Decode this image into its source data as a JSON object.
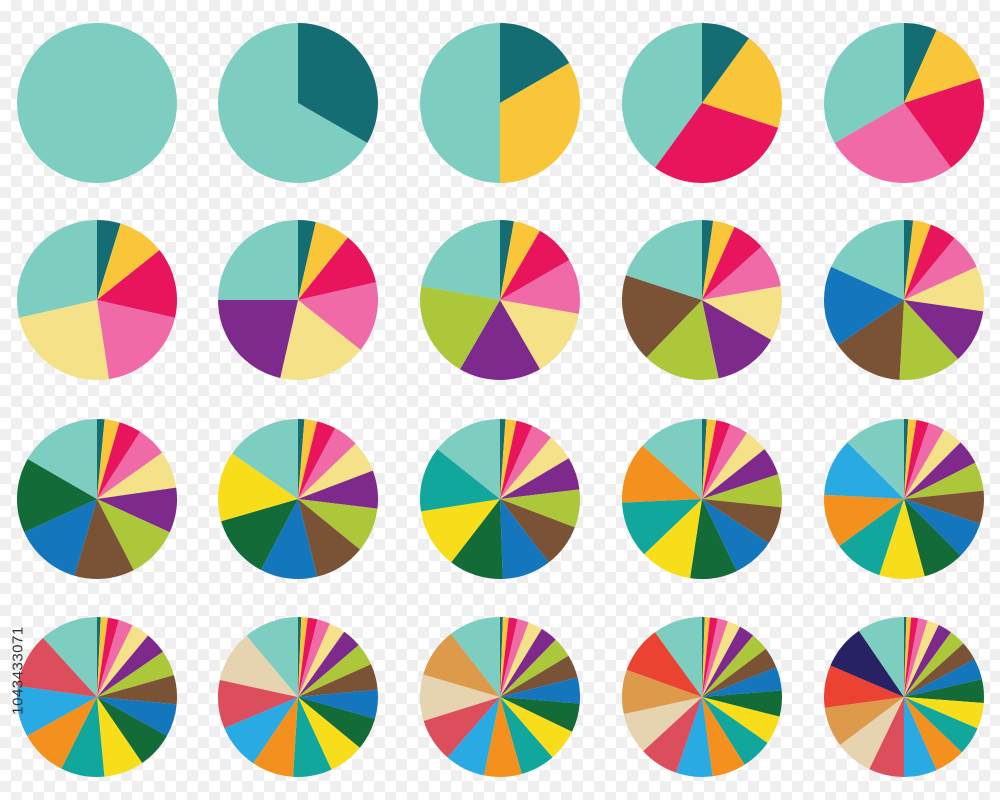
{
  "stock_id": "1043433071",
  "palette": {
    "teal_light": "#7dcdc1",
    "teal_dark": "#136d73",
    "yellow": "#f9c63a",
    "red": "#e8145c",
    "pink": "#f06aa8",
    "cream": "#f4e188",
    "purple": "#7d2a8c",
    "lime": "#adc73a",
    "brown": "#7a5236",
    "blue": "#1476bd",
    "green_dark": "#136b38",
    "yellow_bright": "#f8de1a",
    "teal": "#12a79d",
    "orange": "#f4901e",
    "sky": "#2aaae2",
    "salmon": "#dc4e5c",
    "beige": "#e6d3b0",
    "tan": "#dc9a4a",
    "red_orange": "#ec4231",
    "navy": "#272263"
  },
  "chart_data": [
    {
      "type": "pie",
      "values": [
        1
      ],
      "colors": [
        "#7dcdc1"
      ]
    },
    {
      "type": "pie",
      "values": [
        1,
        2
      ],
      "colors": [
        "#136d73",
        "#7dcdc1"
      ]
    },
    {
      "type": "pie",
      "values": [
        1,
        2,
        3
      ],
      "colors": [
        "#136d73",
        "#f9c63a",
        "#7dcdc1"
      ]
    },
    {
      "type": "pie",
      "values": [
        1,
        2,
        3,
        4
      ],
      "colors": [
        "#136d73",
        "#f9c63a",
        "#e8145c",
        "#7dcdc1"
      ]
    },
    {
      "type": "pie",
      "values": [
        1,
        2,
        3,
        4,
        5
      ],
      "colors": [
        "#136d73",
        "#f9c63a",
        "#e8145c",
        "#f06aa8",
        "#7dcdc1"
      ]
    },
    {
      "type": "pie",
      "values": [
        1,
        2,
        3,
        4,
        5,
        6
      ],
      "colors": [
        "#136d73",
        "#f9c63a",
        "#e8145c",
        "#f06aa8",
        "#f4e188",
        "#7dcdc1"
      ]
    },
    {
      "type": "pie",
      "values": [
        1,
        2,
        3,
        4,
        5,
        6,
        7
      ],
      "colors": [
        "#136d73",
        "#f9c63a",
        "#e8145c",
        "#f06aa8",
        "#f4e188",
        "#7d2a8c",
        "#7dcdc1"
      ]
    },
    {
      "type": "pie",
      "values": [
        1,
        2,
        3,
        4,
        5,
        6,
        7,
        8
      ],
      "colors": [
        "#136d73",
        "#f9c63a",
        "#e8145c",
        "#f06aa8",
        "#f4e188",
        "#7d2a8c",
        "#adc73a",
        "#7dcdc1"
      ]
    },
    {
      "type": "pie",
      "values": [
        1,
        2,
        3,
        4,
        5,
        6,
        7,
        8,
        9
      ],
      "colors": [
        "#136d73",
        "#f9c63a",
        "#e8145c",
        "#f06aa8",
        "#f4e188",
        "#7d2a8c",
        "#adc73a",
        "#7a5236",
        "#7dcdc1"
      ]
    },
    {
      "type": "pie",
      "values": [
        1,
        2,
        3,
        4,
        5,
        6,
        7,
        8,
        9,
        10
      ],
      "colors": [
        "#136d73",
        "#f9c63a",
        "#e8145c",
        "#f06aa8",
        "#f4e188",
        "#7d2a8c",
        "#adc73a",
        "#7a5236",
        "#1476bd",
        "#7dcdc1"
      ]
    },
    {
      "type": "pie",
      "values": [
        1,
        2,
        3,
        4,
        5,
        6,
        7,
        8,
        9,
        10,
        11
      ],
      "colors": [
        "#136d73",
        "#f9c63a",
        "#e8145c",
        "#f06aa8",
        "#f4e188",
        "#7d2a8c",
        "#adc73a",
        "#7a5236",
        "#1476bd",
        "#136b38",
        "#7dcdc1"
      ]
    },
    {
      "type": "pie",
      "values": [
        1,
        2,
        3,
        4,
        5,
        6,
        7,
        8,
        9,
        10,
        11,
        12
      ],
      "colors": [
        "#136d73",
        "#f9c63a",
        "#e8145c",
        "#f06aa8",
        "#f4e188",
        "#7d2a8c",
        "#adc73a",
        "#7a5236",
        "#1476bd",
        "#136b38",
        "#f8de1a",
        "#7dcdc1"
      ]
    },
    {
      "type": "pie",
      "values": [
        1,
        2,
        3,
        4,
        5,
        6,
        7,
        8,
        9,
        10,
        11,
        12,
        13
      ],
      "colors": [
        "#136d73",
        "#f9c63a",
        "#e8145c",
        "#f06aa8",
        "#f4e188",
        "#7d2a8c",
        "#adc73a",
        "#7a5236",
        "#1476bd",
        "#136b38",
        "#f8de1a",
        "#12a79d",
        "#7dcdc1"
      ]
    },
    {
      "type": "pie",
      "values": [
        1,
        2,
        3,
        4,
        5,
        6,
        7,
        8,
        9,
        10,
        11,
        12,
        13,
        14
      ],
      "colors": [
        "#136d73",
        "#f9c63a",
        "#e8145c",
        "#f06aa8",
        "#f4e188",
        "#7d2a8c",
        "#adc73a",
        "#7a5236",
        "#1476bd",
        "#136b38",
        "#f8de1a",
        "#12a79d",
        "#f4901e",
        "#7dcdc1"
      ]
    },
    {
      "type": "pie",
      "values": [
        1,
        2,
        3,
        4,
        5,
        6,
        7,
        8,
        9,
        10,
        11,
        12,
        13,
        14,
        15
      ],
      "colors": [
        "#136d73",
        "#f9c63a",
        "#e8145c",
        "#f06aa8",
        "#f4e188",
        "#7d2a8c",
        "#adc73a",
        "#7a5236",
        "#1476bd",
        "#136b38",
        "#f8de1a",
        "#12a79d",
        "#f4901e",
        "#2aaae2",
        "#7dcdc1"
      ]
    },
    {
      "type": "pie",
      "values": [
        1,
        2,
        3,
        4,
        5,
        6,
        7,
        8,
        9,
        10,
        11,
        12,
        13,
        14,
        15,
        16
      ],
      "colors": [
        "#136d73",
        "#f9c63a",
        "#e8145c",
        "#f06aa8",
        "#f4e188",
        "#7d2a8c",
        "#adc73a",
        "#7a5236",
        "#1476bd",
        "#136b38",
        "#f8de1a",
        "#12a79d",
        "#f4901e",
        "#2aaae2",
        "#dc4e5c",
        "#7dcdc1"
      ]
    },
    {
      "type": "pie",
      "values": [
        1,
        2,
        3,
        4,
        5,
        6,
        7,
        8,
        9,
        10,
        11,
        12,
        13,
        14,
        15,
        16,
        17
      ],
      "colors": [
        "#136d73",
        "#f9c63a",
        "#e8145c",
        "#f06aa8",
        "#f4e188",
        "#7d2a8c",
        "#adc73a",
        "#7a5236",
        "#1476bd",
        "#136b38",
        "#f8de1a",
        "#12a79d",
        "#f4901e",
        "#2aaae2",
        "#dc4e5c",
        "#e6d3b0",
        "#7dcdc1"
      ]
    },
    {
      "type": "pie",
      "values": [
        1,
        2,
        3,
        4,
        5,
        6,
        7,
        8,
        9,
        10,
        11,
        12,
        13,
        14,
        15,
        16,
        17,
        18
      ],
      "colors": [
        "#136d73",
        "#f9c63a",
        "#e8145c",
        "#f06aa8",
        "#f4e188",
        "#7d2a8c",
        "#adc73a",
        "#7a5236",
        "#1476bd",
        "#136b38",
        "#f8de1a",
        "#12a79d",
        "#f4901e",
        "#2aaae2",
        "#dc4e5c",
        "#e6d3b0",
        "#dc9a4a",
        "#7dcdc1"
      ]
    },
    {
      "type": "pie",
      "values": [
        1,
        2,
        3,
        4,
        5,
        6,
        7,
        8,
        9,
        10,
        11,
        12,
        13,
        14,
        15,
        16,
        17,
        18,
        19
      ],
      "colors": [
        "#136d73",
        "#f9c63a",
        "#e8145c",
        "#f06aa8",
        "#f4e188",
        "#7d2a8c",
        "#adc73a",
        "#7a5236",
        "#1476bd",
        "#136b38",
        "#f8de1a",
        "#12a79d",
        "#f4901e",
        "#2aaae2",
        "#dc4e5c",
        "#e6d3b0",
        "#dc9a4a",
        "#ec4231",
        "#7dcdc1"
      ]
    },
    {
      "type": "pie",
      "values": [
        1,
        2,
        3,
        4,
        5,
        6,
        7,
        8,
        9,
        10,
        11,
        12,
        13,
        14,
        15,
        16,
        17,
        18,
        19,
        20
      ],
      "colors": [
        "#136d73",
        "#f9c63a",
        "#e8145c",
        "#f06aa8",
        "#f4e188",
        "#7d2a8c",
        "#adc73a",
        "#7a5236",
        "#1476bd",
        "#136b38",
        "#f8de1a",
        "#12a79d",
        "#f4901e",
        "#2aaae2",
        "#dc4e5c",
        "#e6d3b0",
        "#dc9a4a",
        "#ec4231",
        "#272263",
        "#7dcdc1"
      ]
    }
  ]
}
